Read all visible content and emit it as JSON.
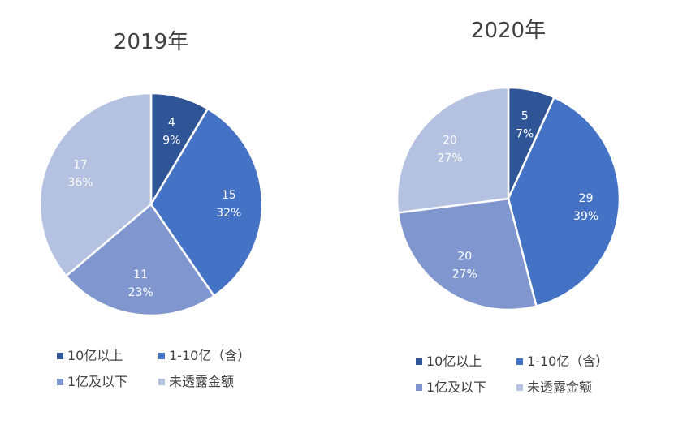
{
  "chart_data": [
    {
      "type": "pie",
      "title": "2019年",
      "categories": [
        "10亿以上",
        "1-10亿（含）",
        "1亿及以下",
        "未透露金额"
      ],
      "values": [
        4,
        15,
        11,
        17
      ],
      "percent_labels": [
        "9%",
        "32%",
        "23%",
        "36%"
      ],
      "colors": [
        "#2F5597",
        "#4472C4",
        "#7F96CF",
        "#B4C1E0"
      ],
      "legend": "bottom"
    },
    {
      "type": "pie",
      "title": "2020年",
      "categories": [
        "10亿以上",
        "1-10亿（含）",
        "1亿及以下",
        "未透露金额"
      ],
      "values": [
        5,
        29,
        20,
        20
      ],
      "percent_labels": [
        "7%",
        "39%",
        "27%",
        "27%"
      ],
      "colors": [
        "#2F5597",
        "#4472C4",
        "#7F96CF",
        "#B4C1E0"
      ],
      "legend": "bottom"
    }
  ]
}
